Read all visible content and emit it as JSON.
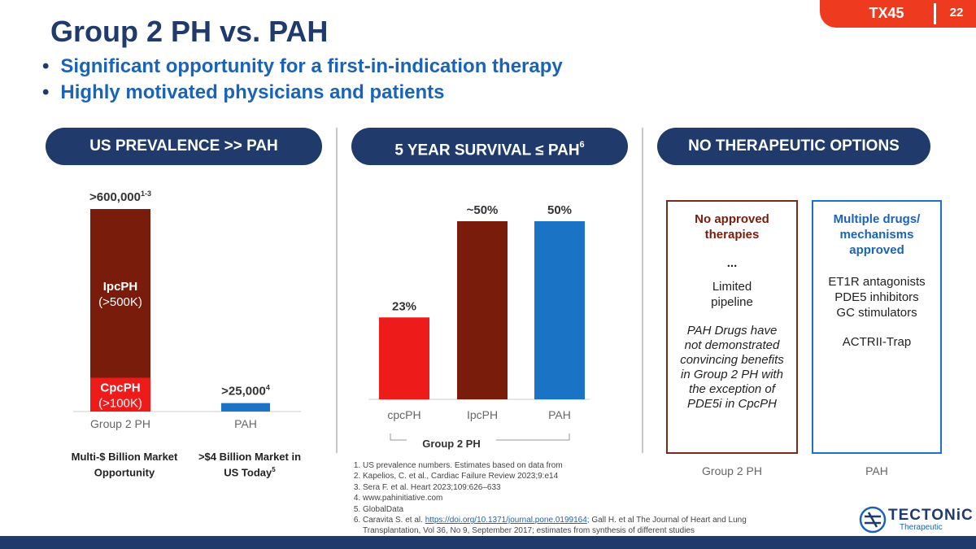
{
  "slide": {
    "title": "Group 2 PH vs. PAH",
    "bullets": [
      "Significant opportunity for a first-in-indication therapy",
      "Highly motivated physicians and patients"
    ],
    "tag": "TX45",
    "page_number": "22"
  },
  "pills": {
    "prevalence": "US PREVALENCE >> PAH",
    "survival": "5 YEAR SURVIVAL ≤ PAH",
    "survival_sup": "6",
    "options": "NO THERAPEUTIC OPTIONS"
  },
  "colors": {
    "navy": "#1f3a6b",
    "blue": "#1b63b8",
    "dark_red": "#7a1c0c",
    "red": "#ee1b1b",
    "pah_blue": "#1a73c4"
  },
  "chart_data": [
    {
      "type": "bar",
      "stacked": true,
      "categories": [
        "Group 2 PH",
        "PAH"
      ],
      "series": [
        {
          "name": "CpcPH",
          "sublabel": "(>100K)",
          "values": [
            100000,
            0
          ]
        },
        {
          "name": "IpcPH",
          "sublabel": "(>500K)",
          "values": [
            500000,
            0
          ]
        },
        {
          "name": "",
          "values": [
            0,
            25000
          ]
        }
      ],
      "total_labels": [
        ">600,000",
        ">25,000"
      ],
      "total_label_sups": [
        "1-3",
        "4"
      ],
      "captions": [
        [
          "Multi-$ Billion Market",
          "Opportunity"
        ],
        [
          ">$4 Billion Market in",
          "US Today"
        ]
      ],
      "caption_sups": [
        "",
        "5"
      ],
      "ylim": [
        0,
        600000
      ]
    },
    {
      "type": "bar",
      "categories": [
        "cpcPH",
        "IpcPH",
        "PAH"
      ],
      "values": [
        23,
        50,
        50
      ],
      "value_labels": [
        "23%",
        "~50%",
        "50%"
      ],
      "group_label": "Group 2 PH",
      "ylim": [
        0,
        50
      ]
    }
  ],
  "options": {
    "group2": {
      "title_lines": [
        "No approved",
        "therapies"
      ],
      "ellipsis": "...",
      "lines": [
        "Limited",
        "pipeline"
      ],
      "italic_lines": [
        "PAH Drugs have",
        "not demonstrated",
        "convincing benefits",
        "in Group 2 PH with",
        "the exception of",
        "PDE5i in CpcPH"
      ],
      "label": "Group 2 PH"
    },
    "pah": {
      "title_lines": [
        "Multiple drugs/",
        "mechanisms",
        "approved"
      ],
      "lines": [
        "ET1R antagonists",
        "PDE5 inhibitors",
        "GC stimulators"
      ],
      "extra_line": "ACTRII-Trap",
      "label": "PAH"
    }
  },
  "references": [
    "US prevalence numbers. Estimates based on data from",
    "Kapelios, C. et al., Cardiac Failure Review 2023;9:e14",
    "Sera F. et al. Heart 2023;109:626–633",
    "www.pahinitiative.com",
    "GlobalData"
  ],
  "reference6": {
    "prefix": "Caravita S. et al. ",
    "link": "https://doi.org/10.1371/journal.pone.0199164",
    "suffix": "; Gall H. et al The Journal of Heart and Lung Transplantation, Vol 36, No 9, September 2017; estimates from synthesis of different studies"
  },
  "logo": {
    "name": "TECTONiC",
    "sub": "Therapeutic",
    "icon": "tectonic-logo-icon"
  }
}
